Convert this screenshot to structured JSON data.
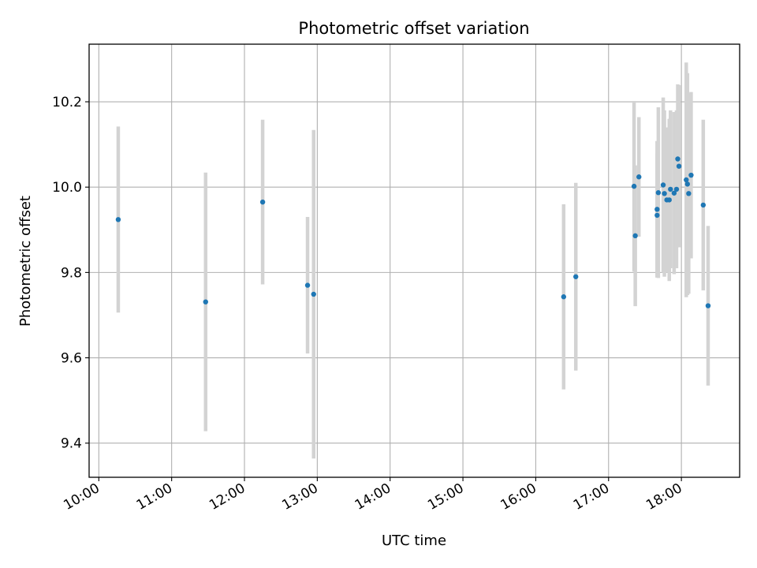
{
  "chart_data": {
    "type": "scatter",
    "title": "Photometric offset variation",
    "xlabel": "UTC time",
    "ylabel": "Photometric offset",
    "x_ticks": [
      "10:00",
      "11:00",
      "12:00",
      "13:00",
      "14:00",
      "15:00",
      "16:00",
      "17:00",
      "18:00"
    ],
    "y_ticks": [
      "9.4",
      "9.6",
      "9.8",
      "10.0",
      "10.2"
    ],
    "xlim": [
      "09:52",
      "18:48"
    ],
    "ylim": [
      9.32,
      10.335
    ],
    "grid": true,
    "point_color": "#1f77b4",
    "errorbar_color": "#d3d3d3",
    "points": [
      {
        "x": "10:16",
        "y": 9.924,
        "err": 0.218
      },
      {
        "x": "11:28",
        "y": 9.731,
        "err": 0.303
      },
      {
        "x": "12:15",
        "y": 9.965,
        "err": 0.193
      },
      {
        "x": "12:52",
        "y": 9.77,
        "err": 0.16
      },
      {
        "x": "12:57",
        "y": 9.749,
        "err": 0.385
      },
      {
        "x": "16:23",
        "y": 9.743,
        "err": 0.217
      },
      {
        "x": "16:33",
        "y": 9.79,
        "err": 0.22
      },
      {
        "x": "17:21",
        "y": 10.002,
        "err": 0.2
      },
      {
        "x": "17:22",
        "y": 9.886,
        "err": 0.165
      },
      {
        "x": "17:25",
        "y": 10.024,
        "err": 0.14
      },
      {
        "x": "17:40",
        "y": 9.934,
        "err": 0.145
      },
      {
        "x": "17:40",
        "y": 9.948,
        "err": 0.16
      },
      {
        "x": "17:41",
        "y": 9.987,
        "err": 0.2
      },
      {
        "x": "17:45",
        "y": 10.005,
        "err": 0.205
      },
      {
        "x": "17:46",
        "y": 9.985,
        "err": 0.195
      },
      {
        "x": "17:48",
        "y": 9.97,
        "err": 0.17
      },
      {
        "x": "17:50",
        "y": 9.97,
        "err": 0.19
      },
      {
        "x": "17:51",
        "y": 9.995,
        "err": 0.185
      },
      {
        "x": "17:54",
        "y": 9.986,
        "err": 0.19
      },
      {
        "x": "17:56",
        "y": 9.995,
        "err": 0.185
      },
      {
        "x": "17:57",
        "y": 10.066,
        "err": 0.175
      },
      {
        "x": "17:58",
        "y": 10.049,
        "err": 0.19
      },
      {
        "x": "18:04",
        "y": 10.017,
        "err": 0.275
      },
      {
        "x": "18:05",
        "y": 10.007,
        "err": 0.26
      },
      {
        "x": "18:06",
        "y": 9.985,
        "err": 0.235
      },
      {
        "x": "18:08",
        "y": 10.028,
        "err": 0.195
      },
      {
        "x": "18:18",
        "y": 9.958,
        "err": 0.2
      },
      {
        "x": "18:22",
        "y": 9.722,
        "err": 0.187
      }
    ]
  }
}
